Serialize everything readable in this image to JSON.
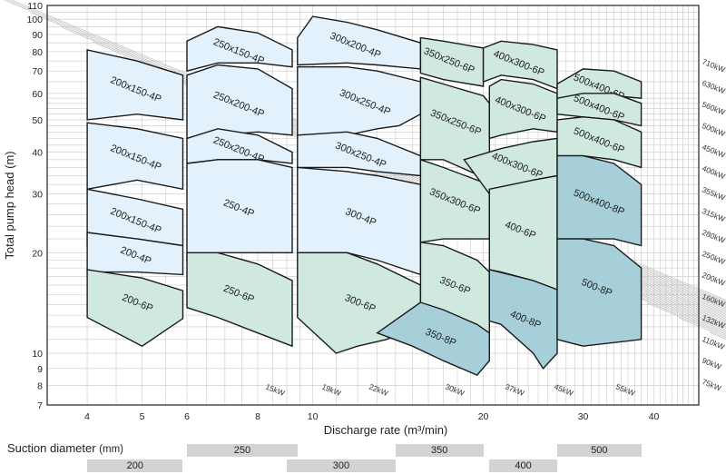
{
  "chart_data": {
    "type": "area",
    "xlabel": "Discharge rate (m³/min)",
    "ylabel": "Total pump head (m)",
    "x_scale": "log",
    "y_scale": "log",
    "xlim": [
      3.4,
      48
    ],
    "ylim": [
      7,
      110
    ],
    "x_ticks": [
      4,
      5,
      6,
      8,
      10,
      20,
      30,
      40
    ],
    "y_ticks": [
      7,
      8,
      9,
      10,
      20,
      30,
      40,
      50,
      60,
      70,
      80,
      90,
      100,
      110
    ],
    "grid": true,
    "colors": {
      "light_blue": "#e2f1fb",
      "light_green": "#cfe9df",
      "dark_blue": "#a6cfda",
      "outline": "#1a1a1a"
    },
    "zones": [
      {
        "label": "200x150-4P",
        "color": "light_blue",
        "points": [
          [
            4.0,
            81
          ],
          [
            4.9,
            75
          ],
          [
            5.9,
            68
          ],
          [
            5.9,
            50
          ],
          [
            4.9,
            52
          ],
          [
            4.0,
            50
          ]
        ]
      },
      {
        "label": "200x150-4P",
        "color": "light_blue",
        "points": [
          [
            4.0,
            49
          ],
          [
            4.9,
            47
          ],
          [
            5.9,
            44
          ],
          [
            5.9,
            31
          ],
          [
            4.9,
            33
          ],
          [
            4.0,
            31
          ]
        ]
      },
      {
        "label": "200x150-4P",
        "color": "light_blue",
        "points": [
          [
            4.0,
            31
          ],
          [
            4.9,
            29
          ],
          [
            5.9,
            27
          ],
          [
            5.9,
            21
          ],
          [
            4.9,
            22
          ],
          [
            4.0,
            21
          ]
        ]
      },
      {
        "label": "200-4P",
        "color": "light_blue",
        "points": [
          [
            4.0,
            23
          ],
          [
            4.9,
            22
          ],
          [
            5.9,
            21
          ],
          [
            5.9,
            17.2
          ],
          [
            4.9,
            17.5
          ],
          [
            4.0,
            17.5
          ]
        ]
      },
      {
        "label": "200-6P",
        "color": "light_green",
        "points": [
          [
            4.0,
            17.8
          ],
          [
            5.0,
            16.8
          ],
          [
            5.9,
            15.4
          ],
          [
            5.9,
            12.7
          ],
          [
            5.0,
            10.5
          ],
          [
            4.0,
            12.8
          ]
        ]
      },
      {
        "label": "250x150-4P",
        "color": "light_blue",
        "points": [
          [
            6.0,
            86
          ],
          [
            6.8,
            95
          ],
          [
            8.0,
            91
          ],
          [
            9.2,
            81
          ],
          [
            9.2,
            72
          ],
          [
            8.0,
            74
          ],
          [
            6.8,
            74
          ],
          [
            6.0,
            70
          ]
        ]
      },
      {
        "label": "250x200-4P",
        "color": "light_blue",
        "points": [
          [
            6.0,
            68
          ],
          [
            6.8,
            73
          ],
          [
            8.0,
            71
          ],
          [
            9.2,
            62
          ],
          [
            9.2,
            45
          ],
          [
            8.0,
            46
          ],
          [
            6.8,
            45
          ],
          [
            6.0,
            44
          ]
        ]
      },
      {
        "label": "250x200-4P",
        "color": "light_blue",
        "points": [
          [
            6.0,
            44
          ],
          [
            6.8,
            47
          ],
          [
            8.0,
            45
          ],
          [
            9.2,
            40
          ],
          [
            9.2,
            37
          ],
          [
            8.0,
            38
          ],
          [
            6.8,
            38
          ],
          [
            6.0,
            37
          ]
        ]
      },
      {
        "label": "250-4P",
        "color": "light_blue",
        "points": [
          [
            6.0,
            37
          ],
          [
            6.8,
            38
          ],
          [
            8.0,
            38
          ],
          [
            9.2,
            36
          ],
          [
            9.2,
            20
          ],
          [
            8.0,
            20
          ],
          [
            6.8,
            20
          ],
          [
            6.0,
            19
          ]
        ]
      },
      {
        "label": "250-6P",
        "color": "light_green",
        "points": [
          [
            6.0,
            20
          ],
          [
            6.8,
            20
          ],
          [
            8.0,
            18.5
          ],
          [
            9.2,
            16.5
          ],
          [
            9.2,
            10.5
          ],
          [
            8.0,
            11.5
          ],
          [
            6.8,
            12.8
          ],
          [
            6.0,
            13.7
          ]
        ]
      },
      {
        "label": "300x200-4P",
        "color": "light_blue",
        "points": [
          [
            9.4,
            88
          ],
          [
            10.0,
            102
          ],
          [
            11.5,
            98
          ],
          [
            13.0,
            93
          ],
          [
            15.5,
            85
          ],
          [
            15.5,
            71
          ],
          [
            13.0,
            73
          ],
          [
            11.5,
            74
          ],
          [
            9.4,
            73
          ]
        ]
      },
      {
        "label": "300x250-4P",
        "color": "light_blue",
        "points": [
          [
            9.4,
            72
          ],
          [
            11.5,
            72
          ],
          [
            13.0,
            70
          ],
          [
            15.5,
            65
          ],
          [
            15.5,
            52
          ],
          [
            14.2,
            48
          ],
          [
            13.0,
            47
          ],
          [
            11.5,
            45
          ],
          [
            9.4,
            45
          ]
        ]
      },
      {
        "label": "300x250-4P",
        "color": "light_blue",
        "points": [
          [
            9.4,
            45
          ],
          [
            11.5,
            46
          ],
          [
            13.0,
            44
          ],
          [
            15.5,
            39
          ],
          [
            15.5,
            34
          ],
          [
            13.0,
            35
          ],
          [
            11.5,
            36
          ],
          [
            9.4,
            36
          ]
        ]
      },
      {
        "label": "300-4P",
        "color": "light_blue",
        "points": [
          [
            9.4,
            36
          ],
          [
            11.5,
            35
          ],
          [
            13.0,
            34
          ],
          [
            15.5,
            32
          ],
          [
            15.5,
            17.2
          ],
          [
            13.0,
            19
          ],
          [
            11.5,
            20
          ],
          [
            9.4,
            20
          ]
        ]
      },
      {
        "label": "300-6P",
        "color": "light_green",
        "points": [
          [
            9.4,
            20
          ],
          [
            11.5,
            20
          ],
          [
            13.0,
            18.5
          ],
          [
            15.5,
            16
          ],
          [
            15.5,
            12.3
          ],
          [
            13.5,
            11
          ],
          [
            12.0,
            10.5
          ],
          [
            11.0,
            10.0
          ],
          [
            9.4,
            12.8
          ]
        ]
      },
      {
        "label": "350x250-6P",
        "color": "light_green",
        "points": [
          [
            15.5,
            88
          ],
          [
            17.0,
            86
          ],
          [
            20.0,
            82
          ],
          [
            20.0,
            63
          ],
          [
            17.0,
            66
          ],
          [
            15.5,
            69
          ]
        ]
      },
      {
        "label": "350x250-6P",
        "color": "light_green",
        "points": [
          [
            15.5,
            67
          ],
          [
            17.0,
            64
          ],
          [
            20.0,
            59
          ],
          [
            20.5,
            56
          ],
          [
            20.5,
            33
          ],
          [
            17.0,
            38
          ],
          [
            15.5,
            38
          ]
        ]
      },
      {
        "label": "350x300-6P",
        "color": "light_green",
        "points": [
          [
            15.5,
            38
          ],
          [
            17.0,
            36
          ],
          [
            19.5,
            33
          ],
          [
            20.5,
            32
          ],
          [
            20.5,
            22
          ],
          [
            17.0,
            22
          ],
          [
            15.5,
            21.5
          ]
        ]
      },
      {
        "label": "350-6P",
        "color": "light_green",
        "points": [
          [
            15.5,
            21.5
          ],
          [
            17.0,
            21
          ],
          [
            19.5,
            19
          ],
          [
            20.5,
            17.5
          ],
          [
            20.5,
            11.5
          ],
          [
            19.0,
            12.2
          ],
          [
            16.0,
            13.8
          ],
          [
            15.5,
            14.0
          ]
        ]
      },
      {
        "label": "350-8P",
        "color": "dark_blue",
        "points": [
          [
            13.0,
            11.5
          ],
          [
            15.5,
            14.2
          ],
          [
            17.0,
            13.5
          ],
          [
            19.5,
            12.2
          ],
          [
            20.5,
            11.5
          ],
          [
            20.5,
            9.5
          ],
          [
            19.5,
            8.6
          ],
          [
            17.0,
            9.5
          ],
          [
            15.0,
            10.5
          ],
          [
            13.0,
            11.5
          ]
        ]
      },
      {
        "label": "400x300-6P",
        "color": "light_green",
        "points": [
          [
            20.0,
            82
          ],
          [
            21.5,
            86
          ],
          [
            24.5,
            84
          ],
          [
            27.0,
            81
          ],
          [
            27.0,
            62
          ],
          [
            24.5,
            66
          ],
          [
            21.5,
            68
          ],
          [
            20.0,
            65
          ]
        ]
      },
      {
        "label": "400x300-6P",
        "color": "light_green",
        "points": [
          [
            20.5,
            63
          ],
          [
            21.5,
            66
          ],
          [
            24.5,
            64
          ],
          [
            27.0,
            60
          ],
          [
            27.0,
            46
          ],
          [
            24.5,
            47
          ],
          [
            21.5,
            45
          ],
          [
            20.5,
            44
          ]
        ]
      },
      {
        "label": "400x300-6P",
        "color": "light_green",
        "points": [
          [
            18.5,
            38
          ],
          [
            21.5,
            41
          ],
          [
            24.5,
            43
          ],
          [
            27.0,
            44
          ],
          [
            27.0,
            34
          ],
          [
            24.5,
            33
          ],
          [
            21.5,
            31
          ],
          [
            20.5,
            30
          ]
        ]
      },
      {
        "label": "400-6P",
        "color": "light_green",
        "points": [
          [
            20.5,
            31
          ],
          [
            21.5,
            31.5
          ],
          [
            24.5,
            33
          ],
          [
            27.0,
            34
          ],
          [
            27.0,
            15.5
          ],
          [
            24.5,
            16.5
          ],
          [
            21.5,
            17.5
          ],
          [
            20.5,
            17.8
          ]
        ]
      },
      {
        "label": "400-8P",
        "color": "dark_blue",
        "points": [
          [
            20.5,
            17.8
          ],
          [
            24.5,
            16.5
          ],
          [
            27.0,
            15.5
          ],
          [
            27.0,
            10.0
          ],
          [
            25.5,
            9.0
          ],
          [
            24.5,
            10.0
          ],
          [
            21.5,
            12.2
          ],
          [
            20.5,
            12.5
          ]
        ]
      },
      {
        "label": "500x400-6P",
        "color": "light_green",
        "points": [
          [
            27.0,
            64
          ],
          [
            30.0,
            71
          ],
          [
            34.0,
            70
          ],
          [
            38.0,
            65
          ],
          [
            38.0,
            58
          ],
          [
            34.0,
            59
          ],
          [
            30.0,
            58
          ],
          [
            27.0,
            57
          ]
        ]
      },
      {
        "label": "500x400-6P",
        "color": "light_green",
        "points": [
          [
            27.0,
            58
          ],
          [
            30.0,
            60
          ],
          [
            34.0,
            60
          ],
          [
            38.0,
            56
          ],
          [
            38.0,
            48
          ],
          [
            34.0,
            50
          ],
          [
            30.0,
            51
          ],
          [
            27.0,
            52
          ]
        ]
      },
      {
        "label": "500x400-6P",
        "color": "light_green",
        "points": [
          [
            27.0,
            50
          ],
          [
            30.0,
            51
          ],
          [
            34.0,
            50
          ],
          [
            38.0,
            46
          ],
          [
            38.0,
            36
          ],
          [
            34.0,
            38
          ],
          [
            30.0,
            39
          ],
          [
            27.0,
            39
          ]
        ]
      },
      {
        "label": "500x400-8P",
        "color": "dark_blue",
        "points": [
          [
            27.0,
            39
          ],
          [
            30.0,
            39
          ],
          [
            34.0,
            37
          ],
          [
            38.0,
            32
          ],
          [
            38.0,
            21
          ],
          [
            34.0,
            22
          ],
          [
            30.0,
            22
          ],
          [
            27.0,
            22
          ]
        ]
      },
      {
        "label": "500-8P",
        "color": "dark_blue",
        "points": [
          [
            27.0,
            22
          ],
          [
            30.0,
            22
          ],
          [
            34.0,
            21
          ],
          [
            38.0,
            18
          ],
          [
            38.0,
            11.0
          ],
          [
            30.0,
            10.5
          ],
          [
            27.0,
            11.0
          ]
        ]
      }
    ],
    "power_labels_right": [
      "710kW",
      "630kW",
      "560kW",
      "500kW",
      "450kW",
      "400kW",
      "355kW",
      "315kW",
      "280kW",
      "250kW",
      "200kW",
      "160kW",
      "132kW",
      "110kW",
      "90kW",
      "75kW"
    ],
    "power_labels_bottom": [
      "15kW",
      "19kW",
      "22kW",
      "30kW",
      "37kW",
      "45kW",
      "55kW"
    ],
    "suction_diameter": {
      "title": "Suction diameter",
      "unit": "(mm)",
      "row1": [
        {
          "label": "250",
          "from": 6.0,
          "to": 9.4
        },
        {
          "label": "350",
          "from": 14.0,
          "to": 20.0
        },
        {
          "label": "500",
          "from": 27.0,
          "to": 38.0
        }
      ],
      "row2": [
        {
          "label": "200",
          "from": 4.0,
          "to": 5.9
        },
        {
          "label": "300",
          "from": 9.0,
          "to": 14.0
        },
        {
          "label": "400",
          "from": 20.5,
          "to": 27.0
        }
      ]
    }
  }
}
